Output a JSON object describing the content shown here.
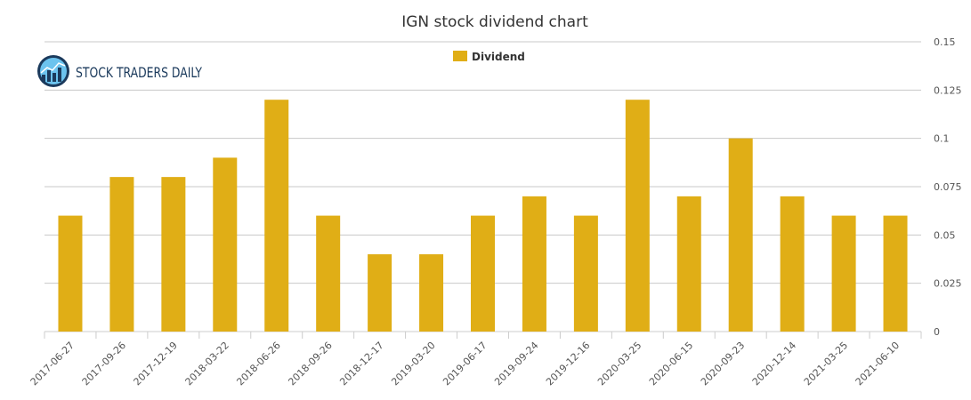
{
  "logo": {
    "text": "STOCK TRADERS DAILY"
  },
  "chart_data": {
    "type": "bar",
    "title": "IGN stock dividend chart",
    "legend": {
      "label": "Dividend",
      "position": "top-center"
    },
    "categories": [
      "2017-06-27",
      "2017-09-26",
      "2017-12-19",
      "2018-03-22",
      "2018-06-26",
      "2018-09-26",
      "2018-12-17",
      "2019-03-20",
      "2019-06-17",
      "2019-09-24",
      "2019-12-16",
      "2020-03-25",
      "2020-06-15",
      "2020-09-23",
      "2020-12-14",
      "2021-03-25",
      "2021-06-10"
    ],
    "series": [
      {
        "name": "Dividend",
        "color": "#e0ae16",
        "values": [
          0.06,
          0.08,
          0.08,
          0.09,
          0.12,
          0.06,
          0.04,
          0.04,
          0.06,
          0.07,
          0.06,
          0.12,
          0.07,
          0.1,
          0.07,
          0.06,
          0.06
        ]
      }
    ],
    "ylim": [
      0,
      0.15
    ],
    "yticks": [
      {
        "value": 0,
        "label": "0"
      },
      {
        "value": 0.025,
        "label": "0.025"
      },
      {
        "value": 0.05,
        "label": "0.05"
      },
      {
        "value": 0.075,
        "label": "0.075"
      },
      {
        "value": 0.1,
        "label": "0.1"
      },
      {
        "value": 0.125,
        "label": "0.125"
      },
      {
        "value": 0.15,
        "label": "0.15"
      }
    ],
    "yaxis_side": "right",
    "grid": true,
    "xlabel": "",
    "ylabel": ""
  }
}
